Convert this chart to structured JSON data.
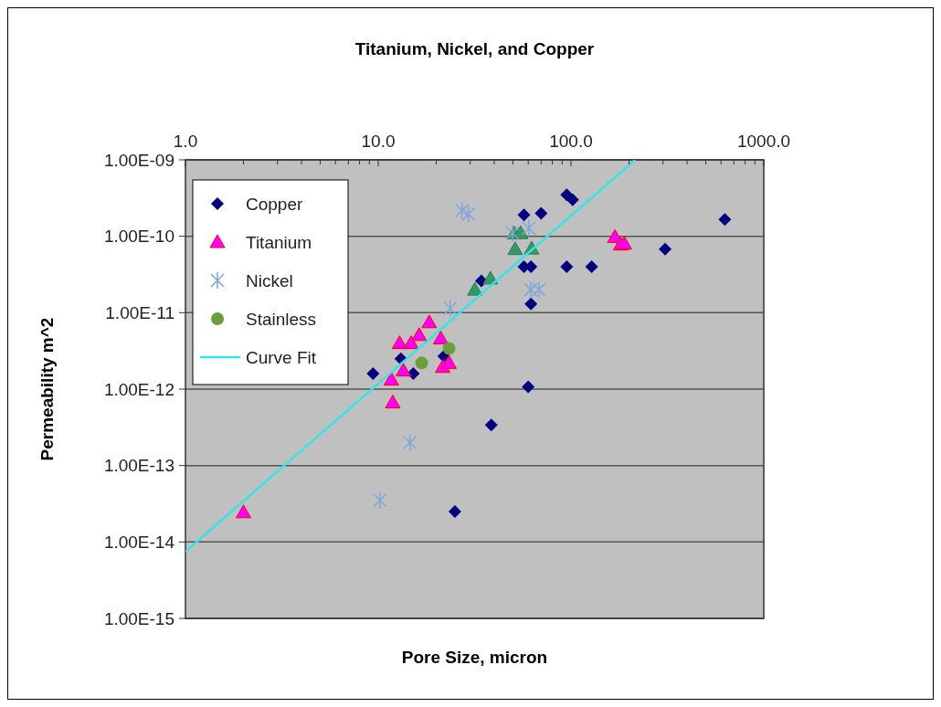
{
  "chart_data": {
    "type": "scatter",
    "title": "Titanium, Nickel, and Copper",
    "xlabel": "Pore Size, micron",
    "ylabel": "Permeability m^2",
    "log": "xy",
    "grid": "y",
    "legend": "top left",
    "xlim": [
      1,
      1000
    ],
    "xticks": [
      {
        "value": 1,
        "label": "1.0"
      },
      {
        "value": 2,
        "label": null
      },
      {
        "value": 3,
        "label": null
      },
      {
        "value": 4,
        "label": null
      },
      {
        "value": 5,
        "label": null
      },
      {
        "value": 6,
        "label": null
      },
      {
        "value": 7,
        "label": null
      },
      {
        "value": 8,
        "label": null
      },
      {
        "value": 9,
        "label": null
      },
      {
        "value": 10,
        "label": "10.0"
      },
      {
        "value": 20,
        "label": null
      },
      {
        "value": 30,
        "label": null
      },
      {
        "value": 40,
        "label": null
      },
      {
        "value": 50,
        "label": null
      },
      {
        "value": 60,
        "label": null
      },
      {
        "value": 70,
        "label": null
      },
      {
        "value": 80,
        "label": null
      },
      {
        "value": 90,
        "label": null
      },
      {
        "value": 100,
        "label": "100.0"
      },
      {
        "value": 200,
        "label": null
      },
      {
        "value": 300,
        "label": null
      },
      {
        "value": 400,
        "label": null
      },
      {
        "value": 500,
        "label": null
      },
      {
        "value": 600,
        "label": null
      },
      {
        "value": 700,
        "label": null
      },
      {
        "value": 800,
        "label": null
      },
      {
        "value": 900,
        "label": null
      },
      {
        "value": 1000,
        "label": "1000.0"
      }
    ],
    "ylim": [
      1e-15,
      1e-09
    ],
    "yticks": [
      {
        "value": 1e-15,
        "label": "1.00E-15"
      },
      {
        "value": 1e-14,
        "label": "1.00E-14"
      },
      {
        "value": 1e-13,
        "label": "1.00E-13"
      },
      {
        "value": 1e-12,
        "label": "1.00E-12"
      },
      {
        "value": 1e-11,
        "label": "1.00E-11"
      },
      {
        "value": 1e-10,
        "label": "1.00E-10"
      },
      {
        "value": 1e-09,
        "label": "1.00E-09"
      }
    ],
    "series": [
      {
        "name": "Copper",
        "color": "#000080",
        "marker": "diamond",
        "x": [
          9.4,
          13.1,
          15.2,
          21.9,
          34.3,
          57,
          70,
          95,
          102,
          57,
          62,
          95,
          128,
          308,
          628,
          62,
          60,
          38.6,
          25
        ],
        "values": [
          1.6e-12,
          2.5e-12,
          1.6e-12,
          2.7e-12,
          2.6e-11,
          1.9e-10,
          2e-10,
          3.5e-10,
          3e-10,
          4e-11,
          4e-11,
          4e-11,
          4e-11,
          6.8e-11,
          1.66e-10,
          1.3e-11,
          1.07e-12,
          3.4e-13,
          2.5e-14
        ]
      },
      {
        "name": "Titanium",
        "color": "#ff00ff",
        "marker": "triangle",
        "x": [
          18.4,
          12.9,
          14.8,
          16.3,
          21.1,
          13.5,
          11.7,
          11.9,
          21.6,
          23.3,
          2,
          169,
          181,
          189
        ],
        "values": [
          7.5e-12,
          4e-12,
          4e-12,
          5.1e-12,
          4.6e-12,
          1.75e-12,
          1.33e-12,
          6.7e-13,
          1.95e-12,
          2.2e-12,
          2.45e-14,
          9.8e-11,
          7.8e-11,
          8e-11
        ]
      },
      {
        "color": "#339966",
        "marker": "triangle",
        "x": [
          50.8,
          54.8,
          51.3,
          62.5,
          38.2,
          31.7
        ],
        "values": [
          1.09e-10,
          1.1e-10,
          6.8e-11,
          6.9e-11,
          2.8e-11,
          2e-11
        ]
      },
      {
        "name": "Nickel",
        "color": "#7fa7d9",
        "marker": "cross",
        "x": [
          27.2,
          29.4,
          49.7,
          60.4,
          23.6,
          61.8,
          68.2,
          14.6,
          10.2
        ],
        "values": [
          2.17e-10,
          1.94e-10,
          1.1e-10,
          1.28e-10,
          1.14e-11,
          2e-11,
          2e-11,
          2e-13,
          3.5e-14
        ]
      },
      {
        "name": "Stainless",
        "color": "#6a9f3a",
        "marker": "circle",
        "x": [
          16.8,
          23.3
        ],
        "values": [
          2.2e-12,
          3.4e-12
        ]
      },
      {
        "name": "Curve Fit",
        "type": "line",
        "color": "#33e6e6",
        "marker": "none",
        "x": [
          1,
          215
        ],
        "values": [
          7.5e-15,
          1e-09
        ]
      }
    ]
  }
}
